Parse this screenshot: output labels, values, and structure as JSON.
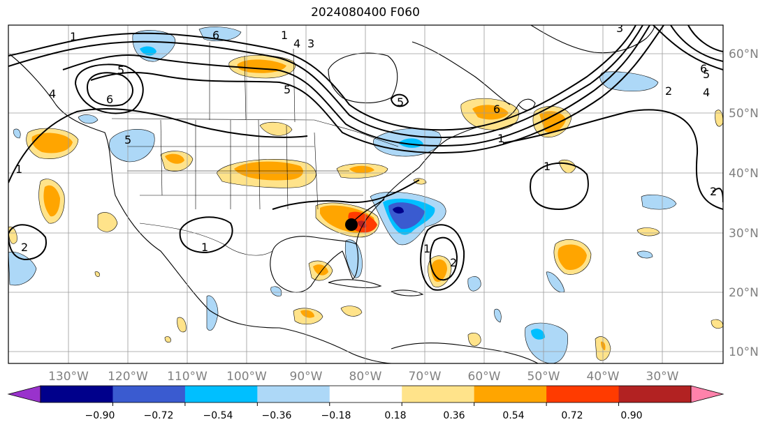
{
  "title": "2024080400 F060",
  "lat_labels": [
    "60°N",
    "50°N",
    "40°N",
    "30°N",
    "20°N",
    "10°N"
  ],
  "lon_labels": [
    "130°W",
    "120°W",
    "110°W",
    "100°W",
    "90°W",
    "80°W",
    "70°W",
    "60°W",
    "50°W",
    "40°W",
    "30°W"
  ],
  "colorbar": {
    "ticks": [
      "−0.90",
      "−0.72",
      "−0.54",
      "−0.36",
      "−0.18",
      "0.18",
      "0.36",
      "0.54",
      "0.72",
      "0.90"
    ],
    "colors": [
      "#9932cc",
      "#00008b",
      "#3a5bd0",
      "#00bfff",
      "#add8f7",
      "#ffffff",
      "#ffe38a",
      "#ffa500",
      "#ff3b00",
      "#b22222",
      "#ff82ab"
    ]
  },
  "contour_labels": [
    "1",
    "6",
    "4",
    "3",
    "5",
    "6",
    "4",
    "5",
    "1",
    "5",
    "2",
    "1",
    "1",
    "2",
    "1",
    "1",
    "5",
    "5",
    "6",
    "4",
    "2",
    "6",
    "2",
    "3",
    "1"
  ],
  "colors": {
    "negative_light": "#add8f7",
    "negative_mid": "#00bfff",
    "negative_strong": "#3a5bd0",
    "negative_max": "#00008b",
    "positive_light": "#ffe38a",
    "positive_mid": "#ffa500",
    "positive_strong": "#ff3b00",
    "contour": "#000000",
    "grid": "#9a9a9a",
    "coast": "#000000"
  },
  "storm_marker": {
    "lon": -81.5,
    "lat": 31.5
  }
}
